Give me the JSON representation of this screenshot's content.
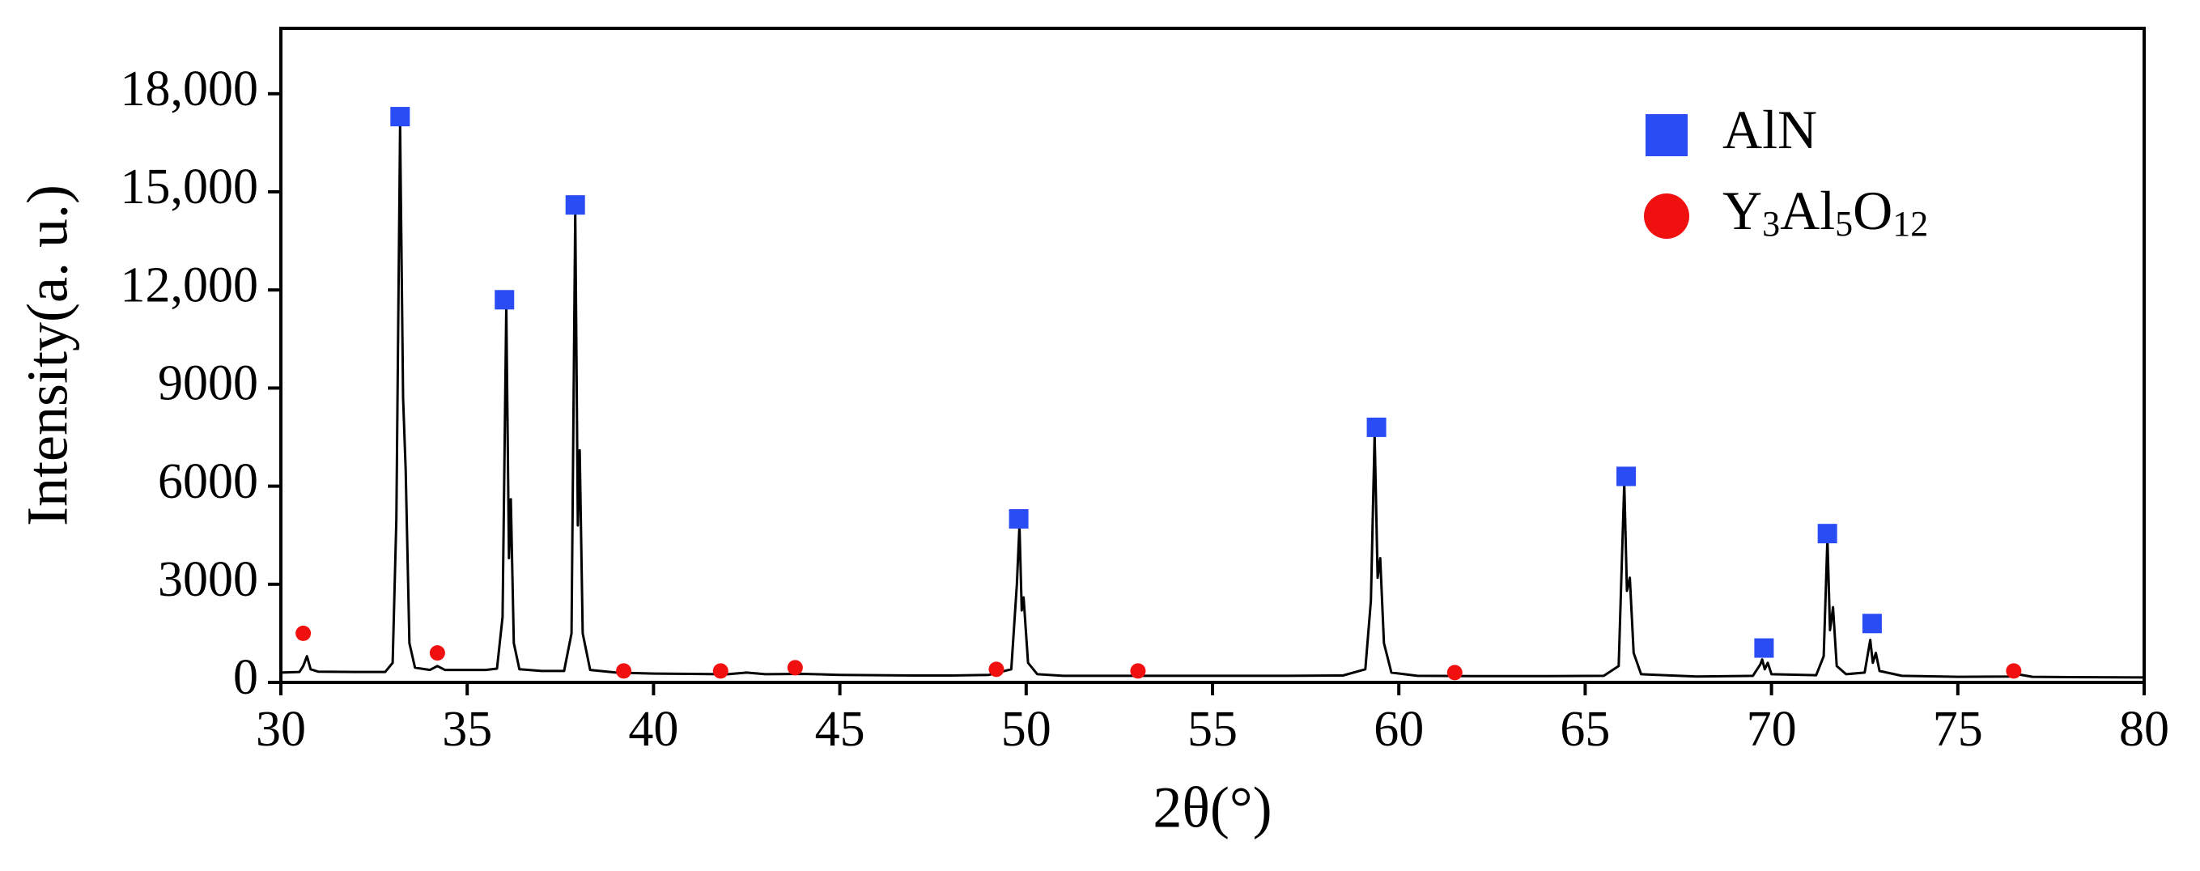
{
  "chart_data": {
    "type": "line",
    "xlabel": "2θ(°)",
    "ylabel": "Intensity(a. u.)",
    "xlim": [
      30,
      80
    ],
    "xticks": [
      30,
      35,
      40,
      45,
      50,
      55,
      60,
      65,
      70,
      75,
      80
    ],
    "ylim": [
      0,
      20000
    ],
    "yticks": [
      0,
      3000,
      6000,
      9000,
      {
        "value": 12000,
        "label": "12,000"
      },
      {
        "value": 15000,
        "label": "15,000"
      },
      {
        "value": 18000,
        "label": "18,000"
      }
    ],
    "color": "#000000",
    "x": [
      30,
      30.5,
      30.6,
      30.7,
      30.8,
      31,
      32,
      32.8,
      33.0,
      33.1,
      33.2,
      33.28,
      33.35,
      33.45,
      33.6,
      34,
      34.2,
      34.4,
      35,
      35.5,
      35.8,
      35.95,
      36.05,
      36.12,
      36.17,
      36.25,
      36.4,
      37,
      37.6,
      37.8,
      37.9,
      37.97,
      38.02,
      38.1,
      38.3,
      39,
      40,
      41,
      42,
      42.5,
      43,
      44,
      45,
      46,
      47,
      48,
      49,
      49.6,
      49.75,
      49.82,
      49.88,
      49.93,
      50.05,
      50.3,
      51,
      53,
      55,
      57,
      58.5,
      59.1,
      59.25,
      59.35,
      59.43,
      59.5,
      59.6,
      59.8,
      60.5,
      62,
      64,
      65.5,
      65.9,
      66.05,
      66.12,
      66.2,
      66.3,
      66.5,
      68,
      69.5,
      69.7,
      69.75,
      69.82,
      69.9,
      70,
      71.2,
      71.4,
      71.5,
      71.57,
      71.65,
      71.75,
      72,
      72.5,
      72.65,
      72.72,
      72.8,
      72.9,
      73.5,
      75,
      76.4,
      76.6,
      77,
      78,
      80
    ],
    "values": [
      300,
      320,
      500,
      800,
      400,
      330,
      320,
      320,
      600,
      5000,
      17000,
      8700,
      6500,
      1200,
      450,
      380,
      500,
      380,
      380,
      380,
      420,
      2000,
      11500,
      3800,
      5600,
      1200,
      400,
      350,
      350,
      1500,
      14400,
      4800,
      7100,
      1500,
      380,
      300,
      270,
      260,
      250,
      300,
      250,
      260,
      230,
      220,
      210,
      210,
      230,
      400,
      3000,
      4800,
      2200,
      2600,
      600,
      250,
      200,
      200,
      200,
      200,
      210,
      400,
      2500,
      7600,
      3200,
      3800,
      1200,
      300,
      200,
      190,
      190,
      200,
      500,
      6100,
      2800,
      3200,
      900,
      250,
      180,
      200,
      550,
      700,
      400,
      600,
      250,
      220,
      800,
      4400,
      1600,
      2300,
      500,
      250,
      300,
      1300,
      600,
      900,
      350,
      200,
      170,
      180,
      250,
      170,
      160,
      150
    ],
    "markers": [
      {
        "name": "AlN",
        "color": "#2a4cf5",
        "shape": "square",
        "x": [
          33.2,
          36.0,
          37.9,
          49.8,
          59.4,
          66.1,
          69.8,
          71.5,
          72.7
        ],
        "values": [
          17300,
          11700,
          14600,
          5000,
          7800,
          6300,
          1050,
          4550,
          1800
        ]
      },
      {
        "name": "Y3Al5O12",
        "color": "#f01010",
        "shape": "circle",
        "x": [
          30.6,
          34.2,
          39.2,
          41.8,
          43.8,
          49.2,
          53.0,
          61.5,
          76.5
        ],
        "values": [
          1500,
          900,
          350,
          350,
          450,
          400,
          350,
          300,
          350
        ]
      }
    ]
  }
}
